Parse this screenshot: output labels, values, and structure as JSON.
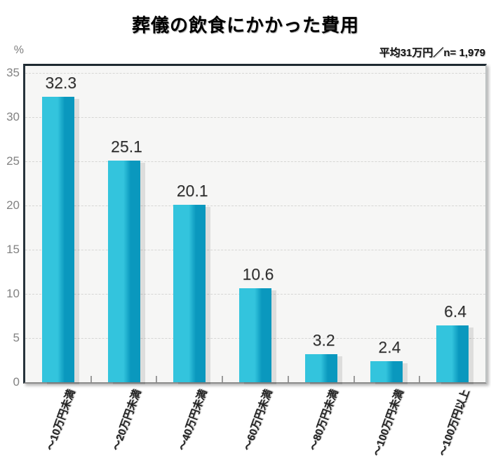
{
  "chart": {
    "title": "葬儀の飲食にかかった費用",
    "subtitle": "平均31万円／n= 1,979",
    "unit_label": "%"
  },
  "colors": {
    "bar_left": "#33c4dd",
    "bar_right": "#0a98be",
    "plot_background": "#f6f6f5",
    "axis_dark": "#1d2930",
    "baseline": "#8b8b8b",
    "gridline": "#d6d6d4",
    "tick_label": "#828282",
    "value_label": "#2e2e2e",
    "category_label": "#222222"
  },
  "chart_data": {
    "type": "bar",
    "title": "葬儀の飲食にかかった費用",
    "subtitle": "平均31万円／n= 1,979",
    "categories": [
      "〜10万円未満",
      "〜20万円未満",
      "〜40万円未満",
      "〜60万円未満",
      "〜80万円未満",
      "〜100万円未満",
      "〜100万円以上"
    ],
    "values": [
      32.3,
      25.1,
      20.1,
      10.6,
      3.2,
      2.4,
      6.4
    ],
    "xlabel": "",
    "ylabel": "%",
    "ylim": [
      0,
      35.8
    ],
    "yticks": [
      0,
      5,
      10,
      15,
      20,
      25,
      30,
      35
    ],
    "grid": "horizontal-dashed",
    "legend": "none"
  }
}
